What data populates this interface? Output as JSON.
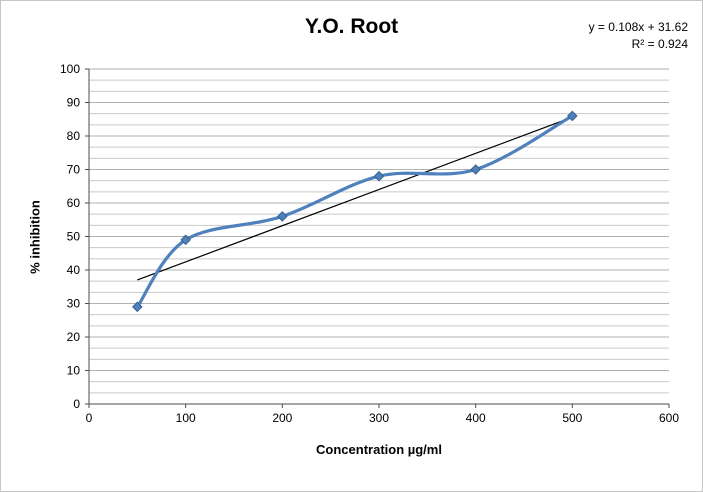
{
  "chart_data": {
    "type": "line",
    "title": "Y.O. Root",
    "xlabel": "Concentration µg/ml",
    "ylabel": "% inhibition",
    "x": [
      50,
      100,
      200,
      300,
      400,
      500
    ],
    "y": [
      29,
      49,
      56,
      68,
      70,
      86
    ],
    "xlim": [
      0,
      600
    ],
    "ylim": [
      0,
      100
    ],
    "x_ticks": [
      0,
      100,
      200,
      300,
      400,
      500,
      600
    ],
    "y_ticks": [
      0,
      10,
      20,
      30,
      40,
      50,
      60,
      70,
      80,
      90,
      100
    ],
    "y_minor_per_major": 3,
    "grid": "horizontal",
    "legend": "none",
    "line_color": "#4f81bd",
    "marker": "diamond",
    "marker_color": "#4f81bd",
    "trendline": {
      "slope": 0.108,
      "intercept": 31.62,
      "x_range": [
        50,
        500
      ],
      "color": "#000000"
    },
    "annotations": [
      "y = 0.108x + 31.62",
      "R² = 0.924"
    ]
  }
}
